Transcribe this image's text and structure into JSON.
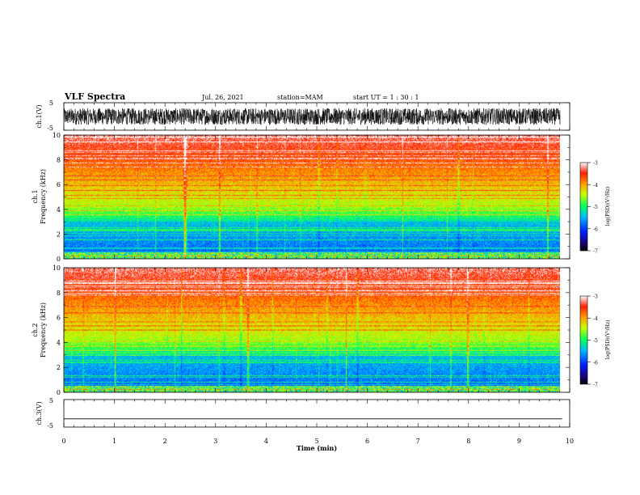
{
  "header": {
    "title": "VLF Spectra",
    "date": "Jul. 26, 2021",
    "station": "station=MAM",
    "start": "start UT =  1 : 30 : 1"
  },
  "chart_data": [
    {
      "type": "line",
      "panel": "waveform ch.1",
      "ylabel": "ch.1(V)",
      "ylim": [
        -5,
        5
      ],
      "yticks": [
        "5",
        "-5"
      ],
      "xlim": [
        0,
        10
      ],
      "description_series": [
        {
          "values_min": -3,
          "values_max": 3
        }
      ]
    },
    {
      "type": "heatmap",
      "panel": "spectrogram ch.1",
      "ylabel": "ch.1\nFrequency (kHz)",
      "ylim": [
        0,
        10
      ],
      "yticks": [
        "0",
        "2",
        "4",
        "6",
        "8",
        "10"
      ],
      "xlim": [
        0,
        9.85
      ],
      "colorbar": {
        "label": "log(PSD)(V²/Hz)",
        "ticks": [
          "-3",
          "-4",
          "-5",
          "-6",
          "-7"
        ],
        "range": [
          -7,
          -3
        ]
      }
    },
    {
      "type": "heatmap",
      "panel": "spectrogram ch.2",
      "ylabel": "ch.2\nFrequency (kHz)",
      "ylim": [
        0,
        10
      ],
      "yticks": [
        "0",
        "2",
        "4",
        "6",
        "8",
        "10"
      ],
      "xlim": [
        0,
        9.85
      ],
      "colorbar": {
        "label": "log(PSD)(V²/Hz)",
        "ticks": [
          "-3",
          "-4",
          "-5",
          "-6",
          "-7"
        ],
        "range": [
          -7,
          -3
        ]
      }
    },
    {
      "type": "line",
      "panel": "waveform ch.3",
      "ylabel": "ch.3(V)",
      "ylim": [
        -5,
        5
      ],
      "yticks": [
        "5",
        "-5"
      ],
      "xlim": [
        0,
        9.85
      ],
      "series": [
        {
          "x": [
            0,
            9.85
          ],
          "values": [
            -2,
            -2
          ]
        }
      ]
    }
  ],
  "xaxis": {
    "label": "Time (min)",
    "ticks": [
      "0",
      "1",
      "2",
      "3",
      "4",
      "5",
      "6",
      "7",
      "8",
      "9",
      "10"
    ]
  }
}
